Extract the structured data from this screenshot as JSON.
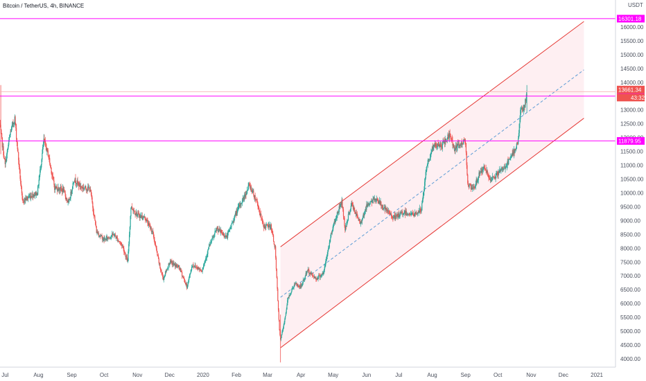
{
  "header": {
    "title": "Bitcoin / TetherUS, 4h, BINANCE",
    "currency": "USDT"
  },
  "colors": {
    "up": "#26a69a",
    "down": "#ef5350",
    "level_line": "#ff00ff",
    "channel": "#e53935",
    "channel_fill": "#fde8ec",
    "mid_line": "#5b9bd5",
    "last_price_tag": "#ef5350"
  },
  "chart_data": {
    "type": "candlestick",
    "title": "Bitcoin / TetherUS, 4h, BINANCE",
    "ylim": [
      3850,
      16600
    ],
    "xlim": [
      "2019-06-25",
      "2021-01-10"
    ],
    "y_ticks": [
      4000,
      4500,
      5000,
      5500,
      6000,
      6500,
      7000,
      7500,
      8000,
      8500,
      9000,
      9500,
      10000,
      10500,
      11000,
      11500,
      12000,
      12500,
      13000,
      13500,
      14000,
      14500,
      15000,
      15500,
      16000
    ],
    "x_ticks": [
      {
        "date": "2019-07-01",
        "label": "Jul"
      },
      {
        "date": "2019-08-01",
        "label": "Aug"
      },
      {
        "date": "2019-09-01",
        "label": "Sep"
      },
      {
        "date": "2019-10-01",
        "label": "Oct"
      },
      {
        "date": "2019-11-01",
        "label": "Nov"
      },
      {
        "date": "2019-12-01",
        "label": "Dec"
      },
      {
        "date": "2020-01-01",
        "label": "2020"
      },
      {
        "date": "2020-02-01",
        "label": "Feb"
      },
      {
        "date": "2020-03-01",
        "label": "Mar"
      },
      {
        "date": "2020-04-01",
        "label": "Apr"
      },
      {
        "date": "2020-05-01",
        "label": "May"
      },
      {
        "date": "2020-06-01",
        "label": "Jun"
      },
      {
        "date": "2020-07-01",
        "label": "Jul"
      },
      {
        "date": "2020-08-01",
        "label": "Aug"
      },
      {
        "date": "2020-09-01",
        "label": "Sep"
      },
      {
        "date": "2020-10-01",
        "label": "Oct"
      },
      {
        "date": "2020-11-01",
        "label": "Nov"
      },
      {
        "date": "2020-12-01",
        "label": "Dec"
      },
      {
        "date": "2021-01-01",
        "label": "2021"
      }
    ],
    "price_path": [
      [
        "2019-06-26",
        12500
      ],
      [
        "2019-07-01",
        11000
      ],
      [
        "2019-07-06",
        12200
      ],
      [
        "2019-07-10",
        12700
      ],
      [
        "2019-07-17",
        9700
      ],
      [
        "2019-07-25",
        9900
      ],
      [
        "2019-07-31",
        10000
      ],
      [
        "2019-08-06",
        11900
      ],
      [
        "2019-08-10",
        11400
      ],
      [
        "2019-08-16",
        10200
      ],
      [
        "2019-08-24",
        10100
      ],
      [
        "2019-08-29",
        9600
      ],
      [
        "2019-09-03",
        10500
      ],
      [
        "2019-09-10",
        10200
      ],
      [
        "2019-09-18",
        10150
      ],
      [
        "2019-09-24",
        8600
      ],
      [
        "2019-10-01",
        8300
      ],
      [
        "2019-10-10",
        8500
      ],
      [
        "2019-10-18",
        8100
      ],
      [
        "2019-10-23",
        7500
      ],
      [
        "2019-10-26",
        9500
      ],
      [
        "2019-11-01",
        9200
      ],
      [
        "2019-11-08",
        9100
      ],
      [
        "2019-11-15",
        8600
      ],
      [
        "2019-11-22",
        7300
      ],
      [
        "2019-11-25",
        6900
      ],
      [
        "2019-12-01",
        7500
      ],
      [
        "2019-12-10",
        7300
      ],
      [
        "2019-12-17",
        6600
      ],
      [
        "2019-12-22",
        7400
      ],
      [
        "2019-12-31",
        7200
      ],
      [
        "2020-01-07",
        8100
      ],
      [
        "2020-01-14",
        8700
      ],
      [
        "2020-01-23",
        8400
      ],
      [
        "2020-02-01",
        9300
      ],
      [
        "2020-02-10",
        10000
      ],
      [
        "2020-02-13",
        10300
      ],
      [
        "2020-02-20",
        9700
      ],
      [
        "2020-02-26",
        8800
      ],
      [
        "2020-03-04",
        8800
      ],
      [
        "2020-03-08",
        8000
      ],
      [
        "2020-03-12",
        5000
      ],
      [
        "2020-03-13",
        4700
      ],
      [
        "2020-03-16",
        5200
      ],
      [
        "2020-03-20",
        6200
      ],
      [
        "2020-03-26",
        6700
      ],
      [
        "2020-04-01",
        6600
      ],
      [
        "2020-04-07",
        7200
      ],
      [
        "2020-04-15",
        6900
      ],
      [
        "2020-04-22",
        7100
      ],
      [
        "2020-04-30",
        8700
      ],
      [
        "2020-05-07",
        9500
      ],
      [
        "2020-05-09",
        9700
      ],
      [
        "2020-05-12",
        8700
      ],
      [
        "2020-05-18",
        9600
      ],
      [
        "2020-05-26",
        8900
      ],
      [
        "2020-06-02",
        9600
      ],
      [
        "2020-06-10",
        9800
      ],
      [
        "2020-06-18",
        9400
      ],
      [
        "2020-06-27",
        9100
      ],
      [
        "2020-07-06",
        9300
      ],
      [
        "2020-07-15",
        9200
      ],
      [
        "2020-07-22",
        9400
      ],
      [
        "2020-07-27",
        11000
      ],
      [
        "2020-08-02",
        11700
      ],
      [
        "2020-08-10",
        11700
      ],
      [
        "2020-08-17",
        12100
      ],
      [
        "2020-08-22",
        11600
      ],
      [
        "2020-09-01",
        11900
      ],
      [
        "2020-09-03",
        10300
      ],
      [
        "2020-09-08",
        10100
      ],
      [
        "2020-09-15",
        10800
      ],
      [
        "2020-09-20",
        10900
      ],
      [
        "2020-09-23",
        10400
      ],
      [
        "2020-10-01",
        10700
      ],
      [
        "2020-10-09",
        11000
      ],
      [
        "2020-10-15",
        11400
      ],
      [
        "2020-10-20",
        11900
      ],
      [
        "2020-10-22",
        13000
      ],
      [
        "2020-10-25",
        13000
      ],
      [
        "2020-10-28",
        13600
      ]
    ],
    "horizontal_levels": [
      {
        "label": "16301.18",
        "value": 16301.18,
        "kind": "level"
      },
      {
        "label": "13661.34",
        "value": 13661.34,
        "kind": "last"
      },
      {
        "label": "43:32",
        "kind": "countdown"
      },
      {
        "label": "13500.00",
        "value": 13500,
        "kind": "level"
      },
      {
        "label": "11879.95",
        "value": 11879.95,
        "kind": "level"
      }
    ],
    "channel": {
      "start": {
        "date": "2020-03-13",
        "lower": 4400,
        "upper": 8050
      },
      "end": {
        "date": "2020-12-20",
        "lower": 12700,
        "upper": 16200
      }
    }
  }
}
